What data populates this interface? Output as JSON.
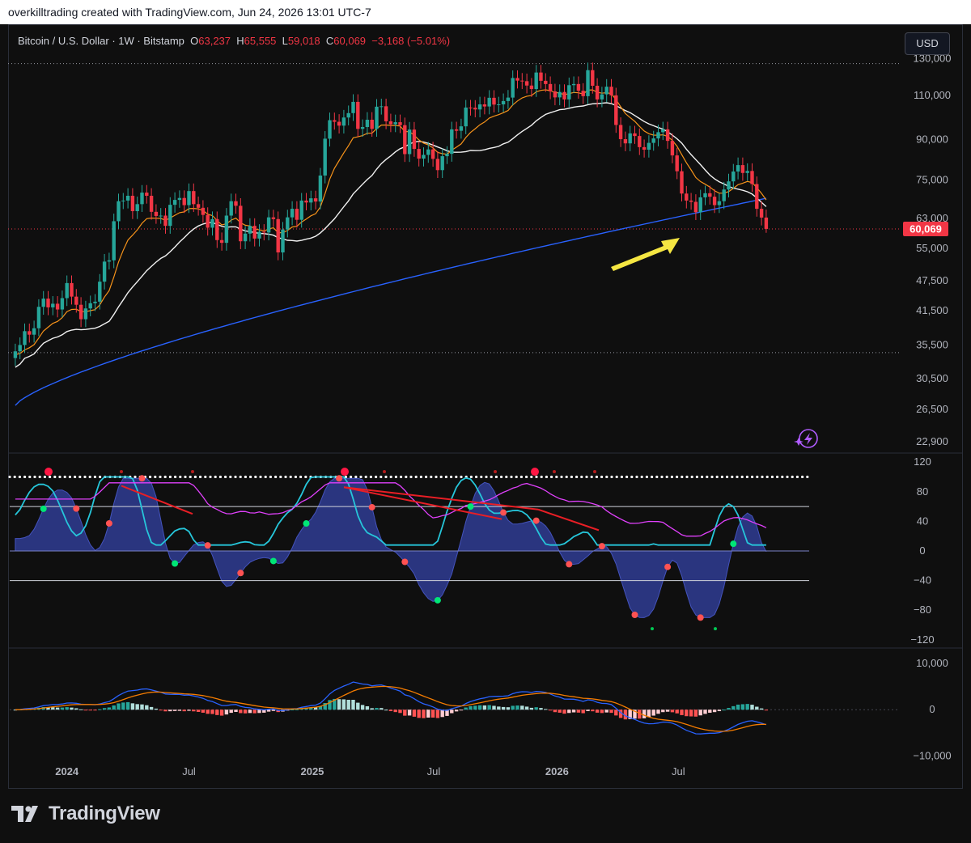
{
  "header": {
    "text": "overkilltrading created with TradingView.com, Jun 24, 2026 13:01 UTC-7"
  },
  "symbol": {
    "name": "Bitcoin / U.S. Dollar · 1W · Bitstamp",
    "o_label": "O",
    "o_value": "63,237",
    "h_label": "H",
    "h_value": "65,555",
    "l_label": "L",
    "l_value": "59,018",
    "c_label": "C",
    "c_value": "60,069",
    "change": "−3,168 (−5.01%)"
  },
  "currency_button": "USD",
  "last_price_tag": "60,069",
  "brand": "TradingView",
  "colors": {
    "up": "#26a69a",
    "down": "#f23645",
    "ema_short": "#f7931a",
    "ma_mid": "#f2f2f2",
    "ma_long": "#2962ff",
    "cyan": "#26c6da",
    "magenta": "#e040fb",
    "navy_fill": "#2e3a8c",
    "arrow": "#f5e642",
    "macd_line": "#2962ff",
    "signal_line": "#f57c00"
  },
  "chart_data": [
    {
      "type": "candlestick",
      "title": "Bitcoin / U.S. Dollar · 1W · Bitstamp",
      "scale": "log",
      "ylim": [
        22000,
        135000
      ],
      "y_ticks": [
        130000,
        110000,
        90000,
        75000,
        63000,
        55000,
        47500,
        41500,
        35500,
        30500,
        26500,
        22900
      ],
      "y_tick_labels": [
        "130,000",
        "110,000",
        "90,000",
        "75,000",
        "63,000",
        "55,000",
        "47,500",
        "41,500",
        "35,500",
        "30,500",
        "26,500",
        "22,900"
      ],
      "x_ticks": [
        "2024",
        "Jul",
        "2025",
        "Jul",
        "2026",
        "Jul"
      ],
      "x_tick_dates": [
        "2024-01-01",
        "2024-07-01",
        "2025-01-01",
        "2025-07-01",
        "2026-01-01",
        "2026-07-01"
      ],
      "start_date": "2023-10-16",
      "weekly_closes": [
        34500,
        35500,
        37800,
        37200,
        38300,
        42200,
        43800,
        42100,
        42800,
        41700,
        43900,
        47000,
        44200,
        42600,
        39900,
        41900,
        42900,
        43200,
        47300,
        51800,
        52100,
        62200,
        68100,
        68300,
        69800,
        65100,
        67200,
        70800,
        69800,
        64900,
        63700,
        63800,
        60900,
        67000,
        68500,
        69100,
        66900,
        71300,
        67200,
        66100,
        64000,
        60400,
        62800,
        57100,
        56400,
        63800,
        68100,
        66700,
        56800,
        58800,
        60900,
        57500,
        59300,
        59100,
        63300,
        62800,
        54000,
        59900,
        63300,
        65800,
        62600,
        68300,
        67700,
        69000,
        68000,
        76500,
        90400,
        98300,
        97600,
        95900,
        99500,
        101500,
        106800,
        94500,
        95300,
        98500,
        94500,
        104500,
        104700,
        97800,
        96500,
        97400,
        96100,
        84300,
        94200,
        86300,
        82600,
        84000,
        86100,
        82500,
        78400,
        83500,
        84400,
        94300,
        93700,
        95600,
        104100,
        104000,
        103200,
        105600,
        104600,
        108800,
        105500,
        105600,
        107200,
        108900,
        119000,
        117600,
        117300,
        115000,
        113200,
        122000,
        117500,
        115800,
        112000,
        109000,
        111700,
        108000,
        115200,
        115800,
        112300,
        109600,
        123300,
        114900,
        108000,
        110500,
        114400,
        110000,
        96200,
        90200,
        88500,
        92600,
        91500,
        87000,
        86000,
        88700,
        90500,
        93100,
        94300,
        89500,
        83800,
        78000,
        70500,
        68300,
        67900,
        64800,
        69300,
        70600,
        69500,
        66900,
        68100,
        71800,
        74500,
        77900,
        80200,
        77400,
        78100,
        73600,
        65800,
        63237,
        60069
      ],
      "ohlc_last": {
        "o": 63237,
        "h": 65555,
        "l": 59018,
        "c": 60069
      },
      "last_price": 60069,
      "horizontal_lines": [
        127000,
        34300
      ],
      "annotations": [
        {
          "type": "arrow",
          "color": "yellow",
          "points_to": "2026-02 low"
        }
      ]
    },
    {
      "type": "oscillator",
      "ylim": [
        -130,
        130
      ],
      "y_ticks": [
        120,
        80,
        40,
        0,
        -40,
        -80,
        -120
      ],
      "y_tick_labels": [
        "120",
        "80",
        "40",
        "0",
        "−40",
        "−80",
        "−120"
      ],
      "levels": [
        100,
        60,
        0,
        -40
      ]
    },
    {
      "type": "macd",
      "ylim": [
        -11000,
        13000
      ],
      "y_ticks": [
        10000,
        0,
        -10000
      ],
      "y_tick_labels": [
        "10,000",
        "0",
        "−10,000"
      ]
    }
  ]
}
